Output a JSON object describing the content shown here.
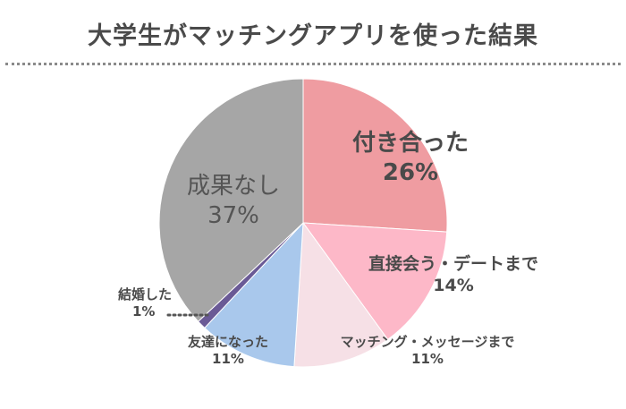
{
  "title": "大学生がマッチングアプリを使った結果",
  "chart_data": {
    "type": "pie",
    "title": "大学生がマッチングアプリを使った結果",
    "start_angle_deg": 0,
    "direction": "clockwise",
    "slices": [
      {
        "label": "付き合った",
        "value": 26,
        "value_label": "26%",
        "color": "#ef9ca1"
      },
      {
        "label": "直接会う・デートまで",
        "value": 14,
        "value_label": "14%",
        "color": "#fdb8c8"
      },
      {
        "label": "マッチング・メッセージまで",
        "value": 11,
        "value_label": "11%",
        "color": "#f6e0e6"
      },
      {
        "label": "友達になった",
        "value": 11,
        "value_label": "11%",
        "color": "#a9c8ec"
      },
      {
        "label": "結婚した",
        "value": 1,
        "value_label": "1%",
        "color": "#6a5a96"
      },
      {
        "label": "成果なし",
        "value": 37,
        "value_label": "37%",
        "color": "#a6a6a6"
      }
    ]
  }
}
